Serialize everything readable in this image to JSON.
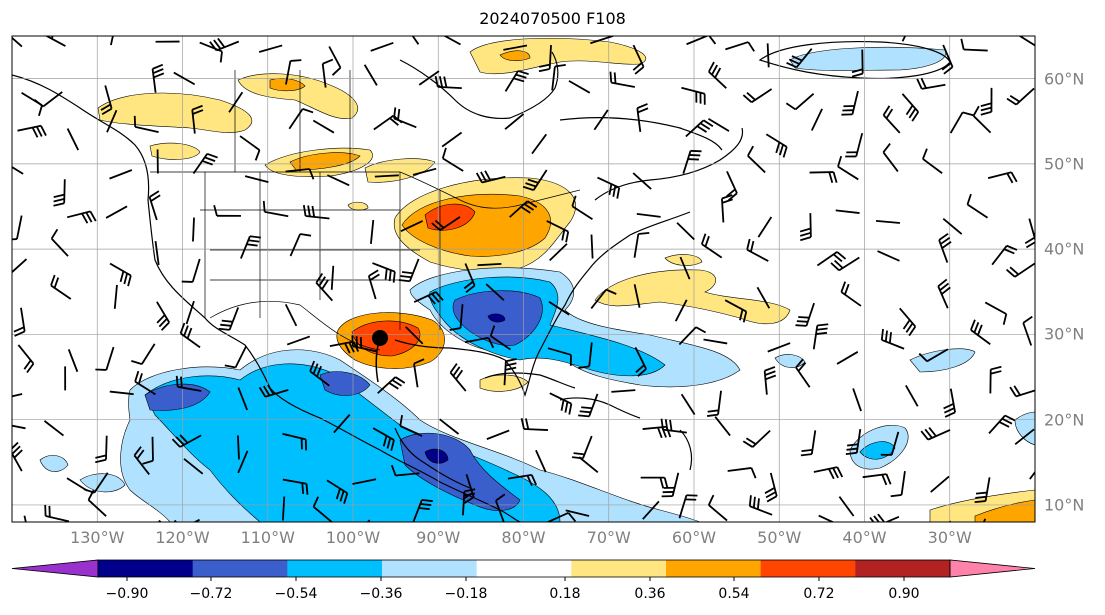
{
  "title": "2024070500 F108",
  "map": {
    "projection": "PlateCarree",
    "extent_lon": [
      -140,
      -20
    ],
    "extent_lat": [
      8,
      65
    ],
    "gridlines": true,
    "grid_color": "#9e9e9e",
    "coastlines": true,
    "country_borders": true,
    "state_borders": true,
    "wind_barbs": true,
    "lon_labels": [
      "130°W",
      "120°W",
      "110°W",
      "100°W",
      "90°W",
      "80°W",
      "70°W",
      "60°W",
      "50°W",
      "40°W",
      "30°W"
    ],
    "lat_labels": [
      "10°N",
      "20°N",
      "30°N",
      "40°N",
      "50°N",
      "60°N"
    ],
    "hurricane_symbol": "hurricane-center-icon"
  },
  "colorbar": {
    "orientation": "horizontal",
    "extend": "both",
    "ticks": [
      "−0.90",
      "−0.72",
      "−0.54",
      "−0.36",
      "−0.18",
      "0.18",
      "0.36",
      "0.54",
      "0.72",
      "0.90"
    ],
    "colors": [
      "#9932cc",
      "#00008b",
      "#3a5fcd",
      "#00bfff",
      "#b0e2ff",
      "#ffffff",
      "#ffe680",
      "#ffa500",
      "#ff4500",
      "#b22222",
      "#ff82ab"
    ]
  }
}
